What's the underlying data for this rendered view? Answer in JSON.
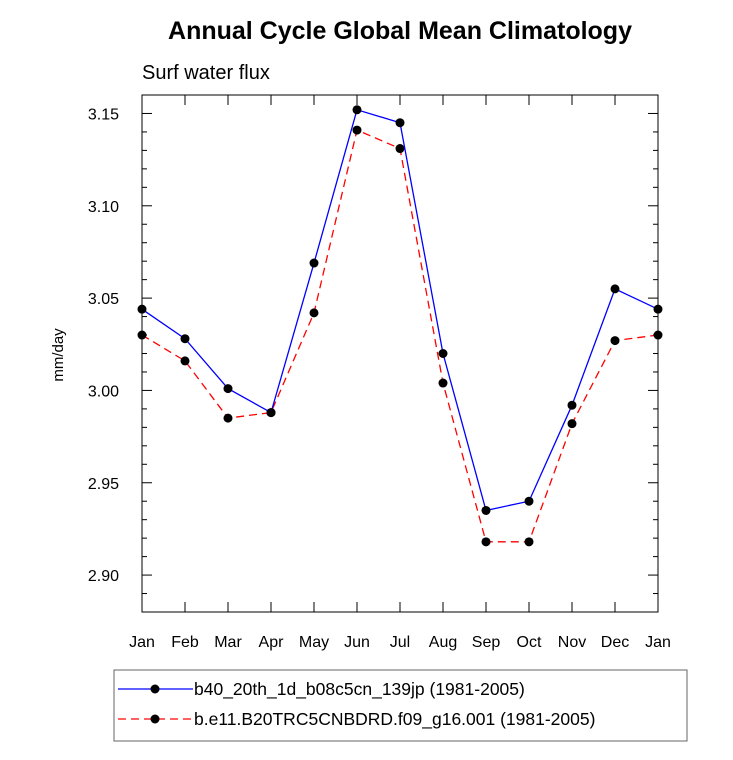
{
  "chart_data": {
    "type": "line",
    "title": "Annual Cycle Global Mean Climatology",
    "subtitle": "Surf water flux",
    "ylabel": "mm/day",
    "xlabel": "",
    "categories": [
      "Jan",
      "Feb",
      "Mar",
      "Apr",
      "May",
      "Jun",
      "Jul",
      "Aug",
      "Sep",
      "Oct",
      "Nov",
      "Dec",
      "Jan"
    ],
    "ylim": [
      2.88,
      3.16
    ],
    "yticks": [
      2.9,
      2.95,
      3.0,
      3.05,
      3.1,
      3.15
    ],
    "ytick_labels": [
      "2.90",
      "2.95",
      "3.00",
      "3.05",
      "3.10",
      "3.15"
    ],
    "series": [
      {
        "name": "b40_20th_1d_b08c5cn_139jp (1981-2005)",
        "color": "#0000ff",
        "dash": "solid",
        "values": [
          3.044,
          3.028,
          3.001,
          2.988,
          3.069,
          3.152,
          3.145,
          3.02,
          2.935,
          2.94,
          2.992,
          3.055,
          3.044
        ]
      },
      {
        "name": "b.e11.B20TRC5CNBDRD.f09_g16.001 (1981-2005)",
        "color": "#ff0000",
        "dash": "dashed",
        "values": [
          3.03,
          3.016,
          2.985,
          2.988,
          3.042,
          3.141,
          3.131,
          3.004,
          2.918,
          2.918,
          2.982,
          3.027,
          3.03
        ]
      }
    ],
    "legend_position": "bottom"
  }
}
